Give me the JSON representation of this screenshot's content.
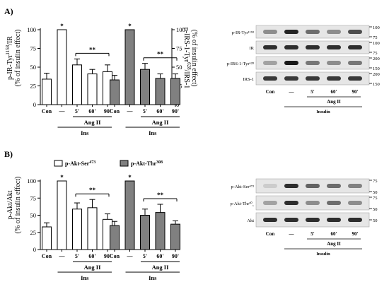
{
  "panels": {
    "A": {
      "label": "A)",
      "left_ylabel_line1": "p-IR-Tyr",
      "left_ylabel_sup": "1158",
      "left_ylabel_line1_tail": "/IR",
      "left_ylabel_line2": "(% of insulin effect)",
      "right_ylabel_line1": "p-IRS-1-Tyr",
      "right_ylabel_sup": "628",
      "right_ylabel_line1_tail": "/IRS-1",
      "right_ylabel_line2": "(% of insulin effect)",
      "blot": {
        "rows": [
          {
            "label": "p-IR-Tyr¹¹⁵⁸",
            "markers": [
              "100",
              "75"
            ]
          },
          {
            "label": "IR",
            "markers": [
              "100",
              "75"
            ]
          },
          {
            "label": "p-IRS-1-Tyr⁶²⁸",
            "markers": [
              "200",
              "150"
            ]
          },
          {
            "label": "IRS-1",
            "markers": [
              "200",
              "150"
            ]
          }
        ],
        "lanes": [
          "Con",
          "—",
          "5'",
          "60'",
          "90'"
        ],
        "group_label": "Ang II",
        "insulin_label": "Insulin"
      }
    },
    "B": {
      "label": "B)",
      "ylabel_line1": "p-Akt/Akt",
      "ylabel_line2": "(% of insulin effect)",
      "legend": [
        {
          "label": "p-Akt-Ser",
          "sup": "473",
          "color": "#ffffff"
        },
        {
          "label": "p-Akt-Thr",
          "sup": "308",
          "color": "#808080"
        }
      ],
      "blot": {
        "rows": [
          {
            "label": "p-Akt-Ser⁴⁷³",
            "markers": [
              "75",
              "50"
            ]
          },
          {
            "label": "p-Akt-Thr³⁰‸",
            "markers": [
              "75",
              "50"
            ]
          },
          {
            "label": "Akt",
            "markers": [
              "50"
            ]
          }
        ],
        "lanes": [
          "Con",
          "—",
          "5'",
          "60'",
          "90'"
        ],
        "group_label": "Ang II",
        "insulin_label": "Insulin"
      }
    }
  },
  "chart_data": [
    {
      "type": "bar",
      "panel": "A-left",
      "categories": [
        "Con",
        "—",
        "5'",
        "60'",
        "90'"
      ],
      "values": [
        34,
        100,
        53,
        41,
        44
      ],
      "errors": [
        8,
        0,
        8,
        6,
        9
      ],
      "color": "#ffffff",
      "ylim": [
        0,
        100
      ],
      "yticks": [
        0,
        25,
        50,
        75,
        100
      ],
      "significance": [
        "",
        "*",
        "**",
        "**",
        "**"
      ],
      "group_label": "Ang II",
      "ins_label": "Ins"
    },
    {
      "type": "bar",
      "panel": "A-right",
      "categories": [
        "Con",
        "—",
        "5'",
        "60'",
        "90'"
      ],
      "values": [
        33,
        100,
        47,
        35,
        35
      ],
      "errors": [
        6,
        0,
        8,
        6,
        6
      ],
      "color": "#808080",
      "ylim": [
        0,
        100
      ],
      "yticks": [
        0,
        25,
        50,
        75,
        100
      ],
      "significance": [
        "",
        "*",
        "**",
        "**",
        "**"
      ],
      "group_label": "Ang II",
      "ins_label": "Ins"
    },
    {
      "type": "bar",
      "panel": "B-left",
      "categories": [
        "Con",
        "—",
        "5'",
        "60'",
        "90'"
      ],
      "values": [
        33,
        100,
        59,
        61,
        44
      ],
      "errors": [
        6,
        0,
        9,
        12,
        8
      ],
      "color": "#ffffff",
      "series": "p-Akt-Ser473",
      "ylim": [
        0,
        100
      ],
      "yticks": [
        0,
        25,
        50,
        75,
        100
      ],
      "significance": [
        "",
        "*",
        "**",
        "**",
        "**"
      ],
      "group_label": "Ang II",
      "ins_label": "Ins"
    },
    {
      "type": "bar",
      "panel": "B-right",
      "categories": [
        "Con",
        "—",
        "5'",
        "60'",
        "90'"
      ],
      "values": [
        35,
        100,
        50,
        54,
        37
      ],
      "errors": [
        6,
        0,
        9,
        12,
        5
      ],
      "color": "#808080",
      "series": "p-Akt-Thr308",
      "ylim": [
        0,
        100
      ],
      "yticks": [
        0,
        25,
        50,
        75,
        100
      ],
      "significance": [
        "",
        "*",
        "**",
        "**",
        "**"
      ],
      "group_label": "Ang II",
      "ins_label": "Ins"
    }
  ]
}
